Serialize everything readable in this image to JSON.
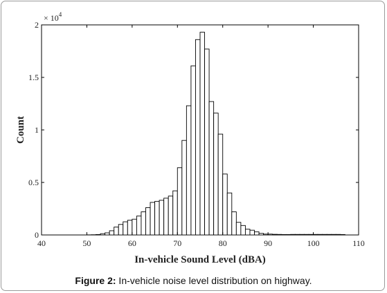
{
  "caption": {
    "label": "Figure 2:",
    "text": " In-vehicle noise level distribution on highway."
  },
  "chart_data": {
    "type": "bar",
    "xlabel": "In-vehicle Sound Level (dBA)",
    "ylabel": "Count",
    "multiplier": "× 10",
    "multiplier_exponent": "4",
    "xlim": [
      40,
      110
    ],
    "ylim": [
      0,
      2
    ],
    "y_unit_scale": 10000,
    "xticks": [
      "40",
      "50",
      "60",
      "70",
      "80",
      "90",
      "100",
      "110"
    ],
    "yticks": [
      "0",
      "0.5",
      "1",
      "1.5",
      "2"
    ],
    "bin_width": 1,
    "bins": [
      [
        50,
        0.001
      ],
      [
        51,
        0.002
      ],
      [
        52,
        0.004
      ],
      [
        53,
        0.012
      ],
      [
        54,
        0.02
      ],
      [
        55,
        0.04
      ],
      [
        56,
        0.075
      ],
      [
        57,
        0.1
      ],
      [
        58,
        0.125
      ],
      [
        59,
        0.14
      ],
      [
        60,
        0.15
      ],
      [
        61,
        0.18
      ],
      [
        62,
        0.22
      ],
      [
        63,
        0.26
      ],
      [
        64,
        0.31
      ],
      [
        65,
        0.32
      ],
      [
        66,
        0.33
      ],
      [
        67,
        0.35
      ],
      [
        68,
        0.37
      ],
      [
        69,
        0.42
      ],
      [
        70,
        0.64
      ],
      [
        71,
        0.9
      ],
      [
        72,
        1.23
      ],
      [
        73,
        1.61
      ],
      [
        74,
        1.86
      ],
      [
        75,
        1.93
      ],
      [
        76,
        1.77
      ],
      [
        77,
        1.27
      ],
      [
        78,
        1.16
      ],
      [
        79,
        0.96
      ],
      [
        80,
        0.58
      ],
      [
        81,
        0.4
      ],
      [
        82,
        0.22
      ],
      [
        83,
        0.12
      ],
      [
        84,
        0.09
      ],
      [
        85,
        0.055
      ],
      [
        86,
        0.045
      ],
      [
        87,
        0.03
      ],
      [
        88,
        0.015
      ],
      [
        89,
        0.008
      ],
      [
        90,
        0.008
      ],
      [
        91,
        0.006
      ],
      [
        92,
        0.005
      ],
      [
        93,
        0.004
      ],
      [
        94,
        0.004
      ],
      [
        95,
        0.005
      ],
      [
        96,
        0.005
      ],
      [
        97,
        0.005
      ],
      [
        98,
        0.005
      ],
      [
        99,
        0.005
      ],
      [
        100,
        0.005
      ],
      [
        101,
        0.005
      ],
      [
        102,
        0.005
      ],
      [
        103,
        0.005
      ],
      [
        104,
        0.005
      ],
      [
        105,
        0.005
      ],
      [
        106,
        0.004
      ]
    ]
  }
}
